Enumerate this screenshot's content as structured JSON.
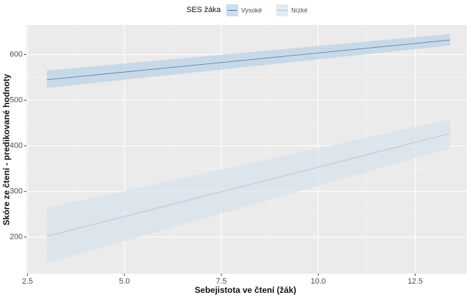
{
  "chart_data": {
    "type": "line",
    "x_label": "Sebejistota ve čtení (žák)",
    "y_label": "Skóre ze čtení - predikované hodnoty",
    "legend_title": "SES žáka",
    "legend_position": "top",
    "grid": true,
    "background": "#ebebeb",
    "xlim": [
      2.47,
      13.83
    ],
    "xticks": [
      2.5,
      {
        "value": 5,
        "label": "5.0"
      },
      7.5,
      {
        "value": 10,
        "label": "10.0"
      },
      12.5
    ],
    "ylim": [
      120,
      665
    ],
    "yticks": [
      200,
      300,
      400,
      500,
      600
    ],
    "series": [
      {
        "name": "Vysoké",
        "color": "#4a78aa",
        "band_color": "#b8d0e6",
        "x": [
          3,
          13.4
        ],
        "values": [
          545,
          632
        ],
        "lower": [
          527,
          620
        ],
        "upper": [
          565,
          645
        ]
      },
      {
        "name": "Nízké",
        "color": "#a8c3dc",
        "band_color": "#d5e1ed",
        "x": [
          3,
          13.4
        ],
        "values": [
          202,
          427
        ],
        "lower": [
          143,
          395
        ],
        "upper": [
          264,
          458
        ]
      }
    ]
  }
}
